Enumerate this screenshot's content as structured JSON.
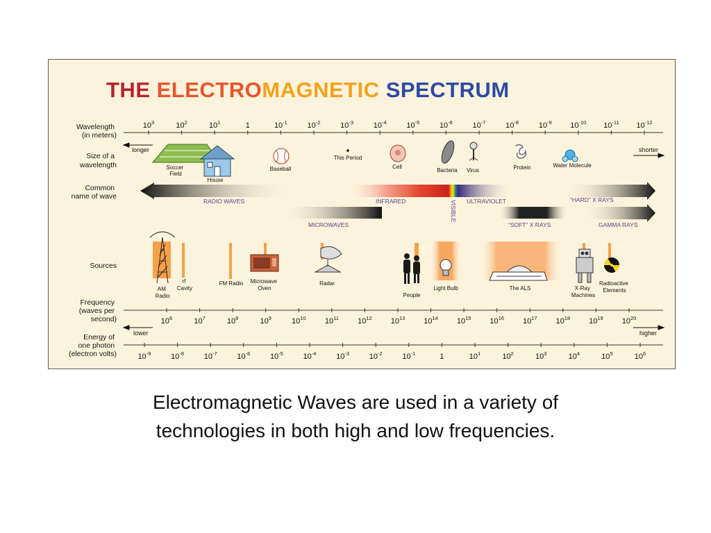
{
  "figure": {
    "title_parts": [
      {
        "text": "THE ",
        "color": "#b8232f"
      },
      {
        "text": "ELECTRO",
        "color": "#e8552b"
      },
      {
        "text": "MAGNETIC ",
        "color": "#f2a21c"
      },
      {
        "text": "SPECTRUM",
        "color": "#2b4aa3"
      }
    ],
    "row_labels": {
      "wavelength": [
        "Wavelength",
        "(in meters)"
      ],
      "size": [
        "Size of a",
        "wavelength"
      ],
      "common": [
        "Common",
        "name of wave"
      ],
      "sources": [
        "Sources"
      ],
      "frequency": [
        "Frequency",
        "(waves per",
        "second)"
      ],
      "energy": [
        "Energy of",
        "one photon",
        "(electron volts)"
      ]
    },
    "wavelength_ticks": [
      {
        "b": "10",
        "e": "3"
      },
      {
        "b": "10",
        "e": "2"
      },
      {
        "b": "10",
        "e": "1"
      },
      {
        "b": "1",
        "e": ""
      },
      {
        "b": "10",
        "e": "-1"
      },
      {
        "b": "10",
        "e": "-2"
      },
      {
        "b": "10",
        "e": "-3"
      },
      {
        "b": "10",
        "e": "-4"
      },
      {
        "b": "10",
        "e": "-5"
      },
      {
        "b": "10",
        "e": "-6"
      },
      {
        "b": "10",
        "e": "-7"
      },
      {
        "b": "10",
        "e": "-8"
      },
      {
        "b": "10",
        "e": "-9"
      },
      {
        "b": "10",
        "e": "-10"
      },
      {
        "b": "10",
        "e": "-11"
      },
      {
        "b": "10",
        "e": "-12"
      }
    ],
    "frequency_ticks": [
      {
        "b": "10",
        "e": "6"
      },
      {
        "b": "10",
        "e": "7"
      },
      {
        "b": "10",
        "e": "8"
      },
      {
        "b": "10",
        "e": "9"
      },
      {
        "b": "10",
        "e": "10"
      },
      {
        "b": "10",
        "e": "11"
      },
      {
        "b": "10",
        "e": "12"
      },
      {
        "b": "10",
        "e": "13"
      },
      {
        "b": "10",
        "e": "14"
      },
      {
        "b": "10",
        "e": "15"
      },
      {
        "b": "10",
        "e": "16"
      },
      {
        "b": "10",
        "e": "17"
      },
      {
        "b": "10",
        "e": "18"
      },
      {
        "b": "10",
        "e": "19"
      },
      {
        "b": "10",
        "e": "20"
      }
    ],
    "energy_ticks": [
      {
        "b": "10",
        "e": "-9"
      },
      {
        "b": "10",
        "e": "-8"
      },
      {
        "b": "10",
        "e": "-7"
      },
      {
        "b": "10",
        "e": "-6"
      },
      {
        "b": "10",
        "e": "-5"
      },
      {
        "b": "10",
        "e": "-4"
      },
      {
        "b": "10",
        "e": "-3"
      },
      {
        "b": "10",
        "e": "-2"
      },
      {
        "b": "10",
        "e": "-1"
      },
      {
        "b": "1",
        "e": ""
      },
      {
        "b": "10",
        "e": "1"
      },
      {
        "b": "10",
        "e": "2"
      },
      {
        "b": "10",
        "e": "3"
      },
      {
        "b": "10",
        "e": "4"
      },
      {
        "b": "10",
        "e": "5"
      },
      {
        "b": "10",
        "e": "6"
      }
    ],
    "direction_labels": {
      "longer": "longer",
      "shorter": "shorter",
      "lower": "lower",
      "higher": "higher"
    },
    "size_items": {
      "soccer": [
        "Soccer",
        "Field"
      ],
      "house": [
        "House"
      ],
      "baseball": [
        "Baseball"
      ],
      "period": [
        "This Period"
      ],
      "cell": [
        "Cell"
      ],
      "bacteria": [
        "Bacteria"
      ],
      "virus": [
        "Virus"
      ],
      "protein": [
        "Protein"
      ],
      "water": [
        "Water Molecule"
      ]
    },
    "wave_names": {
      "radio": "RADIO WAVES",
      "infrared": "INFRARED",
      "visible": "VISIBLE",
      "ultraviolet": "ULTRAVIOLET",
      "hard_xray": "“HARD” X RAYS",
      "microwaves": "MICROWAVES",
      "soft_xray": "“SOFT” X RAYS",
      "gamma": "GAMMA RAYS"
    },
    "sources": {
      "am": [
        "AM",
        "Radio"
      ],
      "rf": [
        "rf",
        "Cavity"
      ],
      "fm": [
        "FM Radio"
      ],
      "microwave": [
        "Microwave",
        "Oven"
      ],
      "radar": [
        "Radar"
      ],
      "people": [
        "People"
      ],
      "bulb": [
        "Light Bulb"
      ],
      "als": [
        "The ALS"
      ],
      "xray": [
        "X-Ray",
        "Machines"
      ],
      "radioactive": [
        "Radioactive",
        "Elements"
      ]
    },
    "colors": {
      "background": "#fcf3dc",
      "accent_orange": "#f7a04a",
      "label_purple": "#5b3d8c",
      "axis": "#333333"
    }
  },
  "caption": {
    "line1": "Electromagnetic Waves are used in a variety of",
    "line2": "technologies in both high and low frequencies."
  }
}
